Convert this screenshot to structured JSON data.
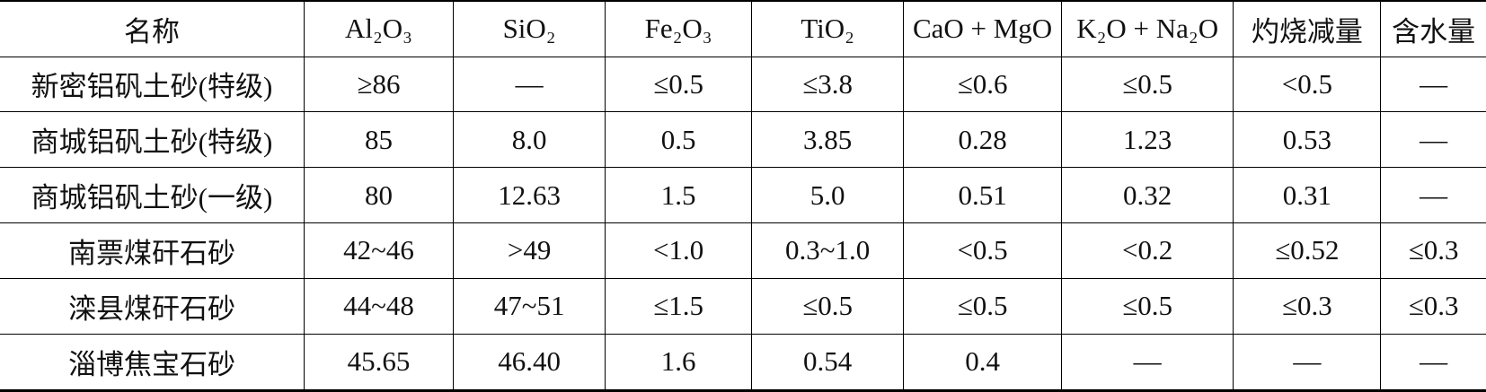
{
  "table": {
    "headers": [
      "名称",
      "Al₂O₃",
      "SiO₂",
      "Fe₂O₃",
      "TiO₂",
      "CaO + MgO",
      "K₂O + Na₂O",
      "灼烧减量",
      "含水量"
    ],
    "rows": [
      [
        "新密铝矾土砂(特级)",
        "≥86",
        "—",
        "≤0.5",
        "≤3.8",
        "≤0.6",
        "≤0.5",
        "<0.5",
        "—"
      ],
      [
        "商城铝矾土砂(特级)",
        "85",
        "8.0",
        "0.5",
        "3.85",
        "0.28",
        "1.23",
        "0.53",
        "—"
      ],
      [
        "商城铝矾土砂(一级)",
        "80",
        "12.63",
        "1.5",
        "5.0",
        "0.51",
        "0.32",
        "0.31",
        "—"
      ],
      [
        "南票煤矸石砂",
        "42~46",
        ">49",
        "<1.0",
        "0.3~1.0",
        "<0.5",
        "<0.2",
        "≤0.52",
        "≤0.3"
      ],
      [
        "滦县煤矸石砂",
        "44~48",
        "47~51",
        "≤1.5",
        "≤0.5",
        "≤0.5",
        "≤0.5",
        "≤0.3",
        "≤0.3"
      ],
      [
        "淄博焦宝石砂",
        "45.65",
        "46.40",
        "1.6",
        "0.54",
        "0.4",
        "—",
        "—",
        "—"
      ]
    ]
  }
}
